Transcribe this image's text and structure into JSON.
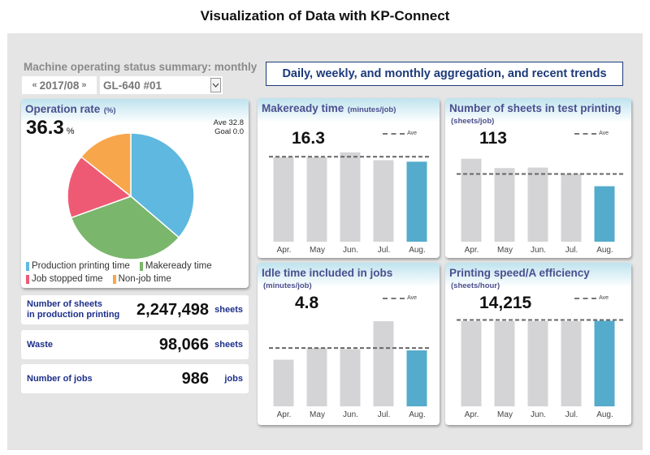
{
  "header": {
    "title": "Visualization of Data with KP-Connect"
  },
  "controls": {
    "summary_label": "Machine operating status summary: monthly",
    "date": "2017/08",
    "prev_icon": "«",
    "next_icon": "»",
    "machine": "GL-640 #01",
    "dropdown_icon": "⌄",
    "trends_banner": "Daily, weekly, and monthly aggregation, and recent trends"
  },
  "operation_rate": {
    "title": "Operation rate",
    "unit": "(%)",
    "value": "36.3",
    "value_unit": "%",
    "ave": "Ave 32.8",
    "goal": "Goal 0.0"
  },
  "stats": [
    {
      "label_line1": "Number of sheets",
      "label_line2": "in production printing",
      "value": "2,247,498",
      "unit": "sheets"
    },
    {
      "label_line1": "Waste",
      "label_line2": "",
      "value": "98,066",
      "unit": "sheets"
    },
    {
      "label_line1": "Number of jobs",
      "label_line2": "",
      "value": "986",
      "unit": "jobs"
    }
  ],
  "colors": {
    "production": "#5fb8df",
    "makeready": "#7ab66b",
    "stopped": "#ee5a74",
    "nonjob": "#f8a64b",
    "bar_past": "#d4d4d6",
    "bar_current": "#55abcc",
    "title_text": "#4b4f8e",
    "label_text": "#1c2f8a"
  },
  "chart_data": [
    {
      "type": "pie",
      "title": "Operation rate (%)",
      "labels": [
        "Production printing time",
        "Makeready time",
        "Job stopped time",
        "Non-job time"
      ],
      "values": [
        36.3,
        33.2,
        16.2,
        14.3
      ],
      "colors": [
        "#5fb8df",
        "#7ab66b",
        "#ee5a74",
        "#f8a64b"
      ],
      "legend": "bottom"
    },
    {
      "type": "bar",
      "title": "Makeready time",
      "unit": "(minutes/job)",
      "display_value": "16.3",
      "ave_label": "Ave",
      "categories": [
        "Apr.",
        "May",
        "Jun.",
        "Jul.",
        "Aug."
      ],
      "values": [
        17.2,
        17.2,
        18.2,
        16.6,
        16.3
      ],
      "average": 17.3,
      "ylim": [
        0,
        19
      ]
    },
    {
      "type": "bar",
      "title": "Number of sheets in test printing",
      "unit": "(sheets/job)",
      "display_value": "113",
      "ave_label": "Ave",
      "categories": [
        "Apr.",
        "May",
        "Jun.",
        "Jul.",
        "Aug."
      ],
      "values": [
        169,
        150,
        151,
        138,
        113
      ],
      "average": 138,
      "ylim": [
        0,
        190
      ]
    },
    {
      "type": "bar",
      "title": "Idle time included in jobs",
      "unit": "(minutes/job)",
      "display_value": "4.8",
      "ave_label": "Ave",
      "categories": [
        "Apr.",
        "May",
        "Jun.",
        "Jul.",
        "Aug."
      ],
      "values": [
        4.0,
        5.0,
        4.9,
        7.3,
        4.8
      ],
      "average": 5.0,
      "ylim": [
        0,
        8
      ]
    },
    {
      "type": "bar",
      "title": "Printing speed/A efficiency",
      "unit": "(sheets/hour)",
      "display_value": "14,215",
      "ave_label": "Ave",
      "categories": [
        "Apr.",
        "May",
        "Jun.",
        "Jul.",
        "Aug."
      ],
      "values": [
        14150,
        14150,
        14150,
        14150,
        14215
      ],
      "average": 14350,
      "ylim": [
        0,
        15500
      ]
    }
  ]
}
